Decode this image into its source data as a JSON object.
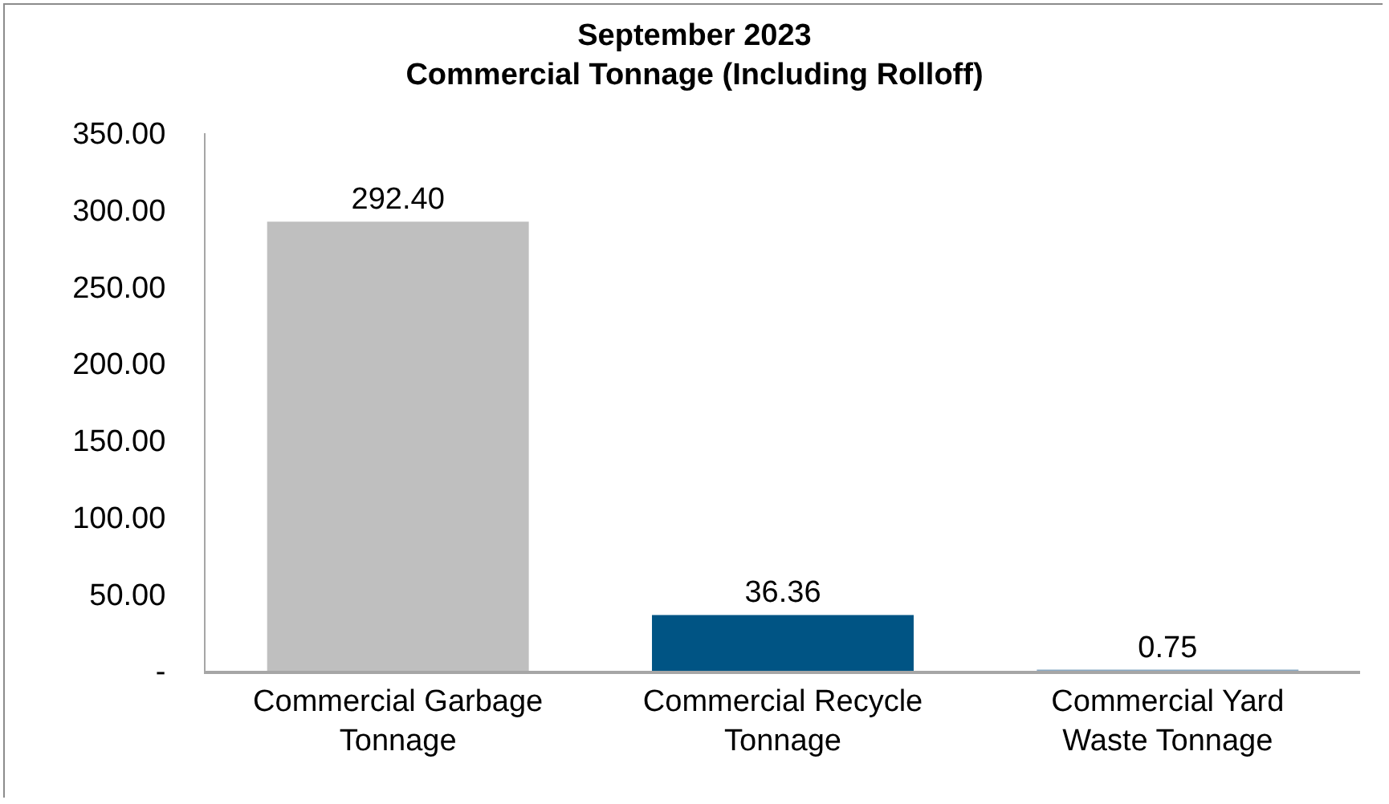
{
  "chart_data": {
    "type": "bar",
    "title": "September 2023",
    "subtitle": "Commercial Tonnage (Including Rolloff)",
    "categories": [
      "Commercial Garbage Tonnage",
      "Commercial Recycle Tonnage",
      "Commercial Yard Waste Tonnage"
    ],
    "values": [
      292.4,
      36.36,
      0.75
    ],
    "colors": [
      "#bfbfbf",
      "#005484",
      "#8aa9c4"
    ],
    "value_labels": [
      "292.40",
      "36.36",
      "0.75"
    ],
    "ylim": [
      0,
      350
    ],
    "yticks": [
      {
        "value": 0,
        "label": "-"
      },
      {
        "value": 50,
        "label": "50.00"
      },
      {
        "value": 100,
        "label": "100.00"
      },
      {
        "value": 150,
        "label": "150.00"
      },
      {
        "value": 200,
        "label": "200.00"
      },
      {
        "value": 250,
        "label": "250.00"
      },
      {
        "value": 300,
        "label": "300.00"
      },
      {
        "value": 350,
        "label": "350.00"
      }
    ]
  }
}
